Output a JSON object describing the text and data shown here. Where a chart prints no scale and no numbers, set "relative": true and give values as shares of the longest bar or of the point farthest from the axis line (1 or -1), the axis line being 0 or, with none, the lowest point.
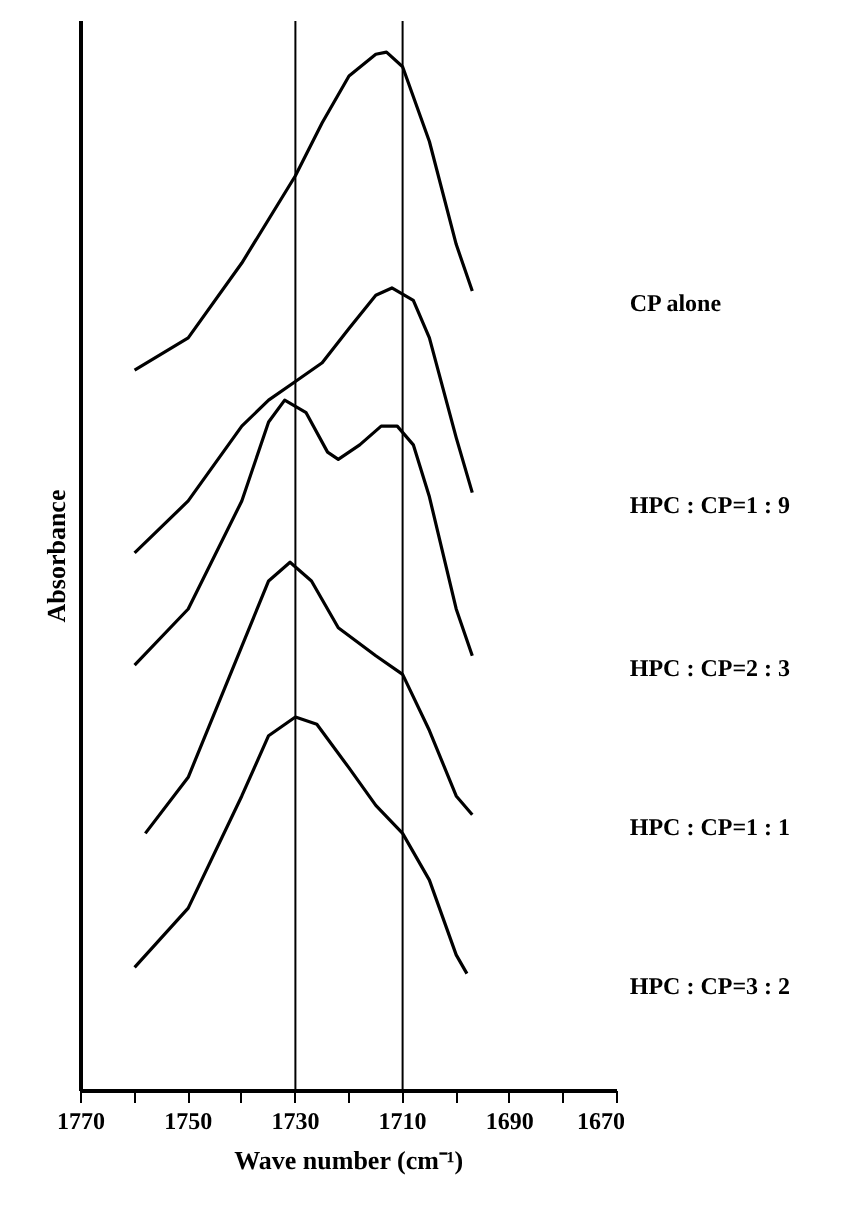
{
  "chart_data": {
    "type": "line",
    "relative": true,
    "xlabel": "Wave number (cm⁻¹)",
    "ylabel": "Absorbance",
    "xlim": [
      1770,
      1670
    ],
    "xticks": [
      1770,
      {
        "value": 1760,
        "label": null
      },
      1750,
      {
        "value": 1740,
        "label": null
      },
      1730,
      {
        "value": 1720,
        "label": null
      },
      1710,
      {
        "value": 1700,
        "label": null
      },
      1690,
      {
        "value": 1680,
        "label": null
      },
      1670
    ],
    "legend": false,
    "grid": false,
    "marker": "none",
    "line_style": "solid",
    "ref_lines": [
      {
        "axis": "x",
        "value": 1730,
        "color": "#000000"
      },
      {
        "axis": "x",
        "value": 1710,
        "color": "#000000"
      }
    ],
    "series": [
      {
        "name": "CP alone",
        "color": "#000000",
        "x": [
          1760,
          1750,
          1740,
          1730,
          1725,
          1720,
          1715,
          1713,
          1710,
          1705,
          1700,
          1697
        ],
        "values": [
          0.694,
          0.725,
          0.797,
          0.881,
          0.932,
          0.977,
          0.998,
          1,
          0.986,
          0.914,
          0.815,
          0.77
        ]
      },
      {
        "name": "HPC : CP=1 : 9",
        "color": "#000000",
        "x": [
          1760,
          1750,
          1740,
          1735,
          1730,
          1725,
          1720,
          1715,
          1712,
          1708,
          1705,
          1700,
          1697
        ],
        "values": [
          0.518,
          0.568,
          0.64,
          0.665,
          0.683,
          0.701,
          0.734,
          0.766,
          0.773,
          0.761,
          0.725,
          0.629,
          0.576
        ]
      },
      {
        "name": "HPC : CP=2 : 3",
        "color": "#000000",
        "x": [
          1760,
          1750,
          1740,
          1735,
          1732,
          1728,
          1724,
          1722,
          1718,
          1714,
          1711,
          1708,
          1705,
          1700,
          1697
        ],
        "values": [
          0.41,
          0.464,
          0.568,
          0.644,
          0.665,
          0.653,
          0.615,
          0.608,
          0.622,
          0.64,
          0.64,
          0.622,
          0.572,
          0.464,
          0.419
        ]
      },
      {
        "name": "HPC : CP=1 : 1",
        "color": "#000000",
        "x": [
          1758,
          1750,
          1740,
          1735,
          1731,
          1727,
          1722,
          1715,
          1710,
          1705,
          1700,
          1697
        ],
        "values": [
          0.248,
          0.302,
          0.428,
          0.491,
          0.509,
          0.491,
          0.446,
          0.419,
          0.401,
          0.347,
          0.284,
          0.266
        ]
      },
      {
        "name": "HPC : CP=3 : 2",
        "color": "#000000",
        "x": [
          1760,
          1750,
          1740,
          1735,
          1730,
          1726,
          1720,
          1715,
          1710,
          1705,
          1700,
          1698
        ],
        "values": [
          0.119,
          0.176,
          0.284,
          0.342,
          0.36,
          0.353,
          0.311,
          0.275,
          0.248,
          0.203,
          0.131,
          0.113
        ]
      }
    ]
  }
}
